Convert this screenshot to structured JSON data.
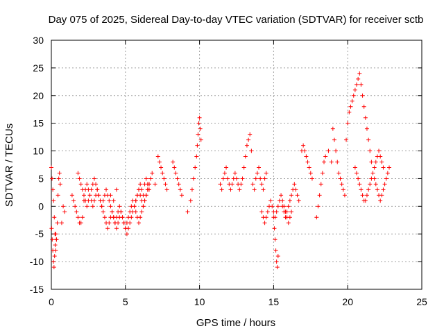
{
  "chart_data": {
    "type": "scatter",
    "title": "Day 075 of 2025, Sidereal Day-to-day VTEC variation (SDTVAR) for receiver sctb",
    "xlabel": "GPS time / hours",
    "ylabel": "SDTVAR / TECUs",
    "xlim": [
      0,
      25
    ],
    "ylim": [
      -15,
      30
    ],
    "xticks": [
      "0",
      "5",
      "10",
      "15",
      "20",
      "25"
    ],
    "yticks": [
      "-15",
      "-10",
      "-5",
      "0",
      "5",
      "10",
      "15",
      "20",
      "25",
      "30"
    ],
    "grid": true,
    "marker": "+",
    "color": "#ff0000",
    "series": [
      {
        "name": "SDTVAR",
        "x": [
          0.0,
          0.05,
          0.1,
          0.15,
          0.2,
          0.25,
          0.3,
          0.35,
          0.4,
          0.45,
          0.5,
          0.55,
          0.6,
          0.7,
          0.8,
          0.9,
          0.02,
          0.06,
          0.1,
          0.14,
          0.18,
          0.22,
          0.26,
          0.3,
          0.34,
          1.4,
          1.5,
          1.6,
          1.7,
          1.8,
          1.9,
          2.0,
          2.1,
          2.2,
          2.3,
          2.4,
          2.5,
          2.6,
          2.7,
          2.8,
          2.9,
          3.0,
          3.1,
          3.2,
          3.3,
          3.4,
          3.5,
          3.6,
          3.7,
          3.8,
          3.9,
          4.0,
          4.1,
          4.2,
          4.3,
          4.4,
          4.5,
          4.6,
          4.7,
          4.8,
          4.9,
          5.0,
          5.1,
          5.2,
          5.3,
          5.4,
          5.5,
          5.6,
          5.7,
          5.8,
          5.9,
          6.0,
          6.1,
          6.2,
          6.3,
          6.4,
          6.5,
          6.6,
          1.8,
          1.9,
          2.0,
          2.1,
          2.2,
          2.3,
          2.4,
          2.5,
          2.6,
          2.7,
          2.8,
          2.9,
          3.0,
          3.1,
          3.2,
          3.3,
          3.4,
          3.5,
          3.6,
          3.7,
          3.8,
          3.9,
          4.0,
          4.1,
          4.2,
          4.3,
          4.4,
          4.5,
          4.6,
          4.7,
          4.8,
          4.9,
          5.0,
          5.1,
          5.2,
          5.3,
          5.4,
          5.5,
          5.6,
          5.7,
          5.8,
          5.9,
          6.0,
          6.1,
          6.2,
          6.3,
          6.4,
          6.5,
          6.6,
          6.7,
          6.8,
          4.0,
          4.2,
          4.4,
          5.7,
          5.8,
          5.9,
          6.0,
          6.1,
          6.2,
          6.3,
          6.4,
          6.5,
          6.6,
          7.0,
          7.2,
          7.3,
          7.4,
          7.5,
          7.6,
          7.7,
          7.8,
          8.2,
          8.3,
          8.4,
          8.5,
          8.6,
          8.7,
          8.8,
          9.2,
          9.4,
          9.5,
          9.6,
          9.7,
          9.8,
          9.85,
          9.9,
          9.95,
          10.0,
          10.05,
          10.1,
          11.4,
          11.5,
          11.6,
          11.7,
          11.8,
          11.9,
          12.0,
          12.1,
          12.2,
          12.3,
          12.4,
          12.5,
          12.6,
          12.7,
          12.8,
          12.9,
          13.0,
          13.1,
          13.2,
          13.3,
          13.4,
          13.5,
          13.6,
          13.7,
          13.8,
          13.9,
          14.0,
          14.1,
          14.2,
          14.3,
          14.4,
          14.5,
          14.2,
          14.3,
          14.4,
          14.5,
          14.6,
          14.7,
          14.8,
          14.9,
          15.0,
          15.1,
          15.2,
          15.3,
          15.4,
          15.5,
          15.6,
          15.7,
          15.8,
          15.9,
          16.0,
          16.1,
          16.2,
          15.0,
          15.05,
          15.1,
          15.15,
          15.2,
          15.25,
          15.3,
          15.6,
          15.7,
          15.8,
          15.9,
          16.0,
          16.1,
          16.2,
          16.3,
          16.4,
          16.5,
          16.6,
          16.7,
          16.9,
          17.0,
          17.1,
          17.2,
          17.3,
          17.4,
          17.5,
          17.6,
          17.9,
          18.0,
          18.1,
          18.2,
          18.3,
          18.4,
          18.5,
          18.7,
          18.9,
          19.0,
          19.1,
          19.2,
          19.3,
          19.4,
          19.5,
          19.6,
          19.7,
          19.8,
          19.9,
          20.0,
          20.1,
          20.2,
          20.3,
          20.4,
          20.5,
          20.6,
          20.7,
          20.8,
          20.9,
          21.0,
          21.1,
          21.2,
          21.3,
          21.4,
          21.5,
          21.6,
          21.7,
          21.8,
          21.9,
          22.0,
          22.1,
          22.2,
          22.3,
          22.4,
          22.5,
          22.6,
          22.7,
          22.8,
          20.5,
          20.6,
          20.7,
          20.8,
          20.9,
          21.0,
          21.1,
          21.2,
          21.3,
          21.4,
          21.5,
          21.6,
          21.7,
          21.8,
          21.9,
          22.0,
          22.1,
          22.2,
          22.3,
          22.4
        ],
        "y": [
          7,
          5,
          3,
          1,
          -2,
          -5,
          -8,
          -6,
          -3,
          2,
          5,
          6,
          4,
          -3,
          0,
          -1,
          -4,
          -6,
          -8,
          -10,
          -11,
          -9,
          -7,
          -5,
          -6,
          2,
          1,
          0,
          -1,
          -2,
          -3,
          -3,
          -2,
          1,
          3,
          4,
          3,
          2,
          1,
          0,
          1,
          2,
          3,
          2,
          1,
          0,
          -1,
          -2,
          -3,
          -4,
          -3,
          -2,
          -1,
          -2,
          -3,
          -4,
          -3,
          -2,
          -1,
          -2,
          -3,
          -4,
          -5,
          -4,
          -3,
          -2,
          -1,
          0,
          1,
          2,
          3,
          2,
          1,
          0,
          1,
          2,
          3,
          4,
          6,
          5,
          4,
          3,
          2,
          1,
          0,
          1,
          2,
          3,
          4,
          5,
          4,
          3,
          2,
          1,
          0,
          1,
          2,
          3,
          2,
          1,
          0,
          -1,
          -2,
          -3,
          -2,
          -1,
          0,
          -1,
          -2,
          -3,
          -4,
          -3,
          -2,
          -1,
          0,
          1,
          0,
          -1,
          -2,
          -3,
          -2,
          -1,
          0,
          1,
          2,
          3,
          4,
          5,
          6,
          2,
          1,
          3,
          1,
          2,
          3,
          4,
          3,
          2,
          4,
          5,
          4,
          3,
          4,
          9,
          8,
          7,
          6,
          5,
          4,
          3,
          8,
          7,
          6,
          5,
          4,
          3,
          2,
          -1,
          1,
          3,
          5,
          7,
          9,
          11,
          13,
          15,
          16,
          14,
          12,
          4,
          3,
          5,
          6,
          7,
          5,
          4,
          3,
          4,
          5,
          6,
          5,
          4,
          3,
          4,
          5,
          7,
          9,
          11,
          12,
          13,
          10,
          4,
          3,
          5,
          6,
          7,
          5,
          4,
          3,
          5,
          6,
          -1,
          -2,
          -3,
          -2,
          -1,
          0,
          1,
          0,
          -1,
          -2,
          -1,
          0,
          1,
          2,
          1,
          0,
          -1,
          -2,
          -3,
          -2,
          -1,
          -2,
          -4,
          -6,
          -8,
          -10,
          -11,
          -9,
          0,
          -1,
          -2,
          -1,
          0,
          1,
          2,
          3,
          4,
          3,
          2,
          1,
          10,
          11,
          10,
          9,
          8,
          7,
          6,
          5,
          -2,
          0,
          2,
          4,
          6,
          8,
          9,
          10,
          8,
          14,
          12,
          10,
          8,
          6,
          5,
          4,
          3,
          2,
          12,
          15,
          17,
          18,
          19,
          20,
          21,
          22,
          23,
          24,
          22,
          20,
          18,
          16,
          14,
          12,
          10,
          8,
          6,
          5,
          4,
          3,
          2,
          1,
          2,
          3,
          4,
          5,
          6,
          7,
          7,
          6,
          5,
          4,
          3,
          2,
          1,
          1,
          2,
          3,
          4,
          5,
          6,
          7,
          8,
          9,
          10,
          9,
          8,
          7
        ]
      }
    ]
  }
}
